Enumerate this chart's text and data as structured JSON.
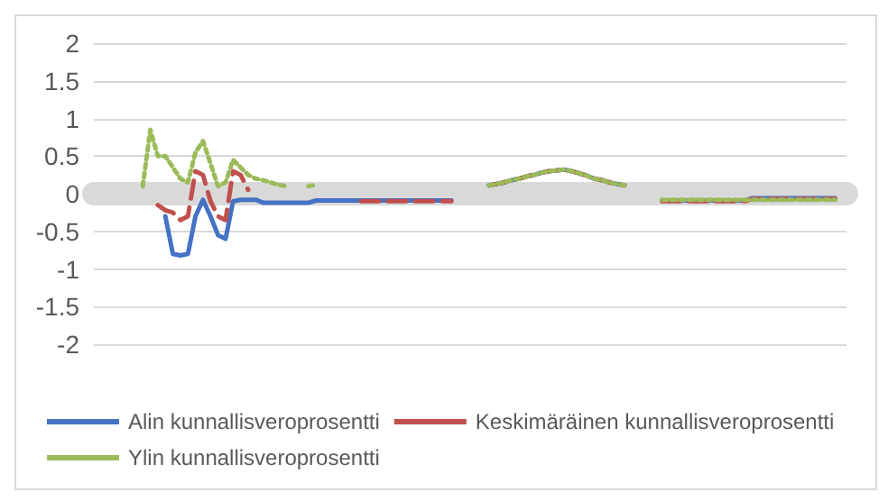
{
  "chart_data": {
    "type": "line",
    "categories": [
      null,
      null,
      null,
      null,
      null,
      null,
      null,
      null,
      null,
      null,
      null,
      null,
      null,
      null,
      null,
      null,
      null,
      null,
      null,
      null,
      null,
      null,
      null,
      null,
      null,
      null,
      null,
      null,
      null,
      null,
      null,
      null,
      null,
      null,
      null,
      null,
      null,
      null,
      null,
      null,
      null,
      null,
      null,
      null,
      null,
      null,
      null,
      null,
      null,
      null,
      null,
      null,
      null,
      null,
      null,
      null,
      null,
      null,
      null,
      null,
      null,
      null,
      null,
      null,
      null,
      null,
      null,
      null,
      null,
      null,
      null,
      null,
      null,
      null,
      null,
      null,
      null,
      null,
      null,
      null,
      null,
      null,
      null,
      null,
      null,
      null,
      null,
      null,
      null,
      null,
      null,
      null,
      null,
      null,
      null,
      null,
      null,
      null,
      null,
      null
    ],
    "ylim": [
      -2,
      2
    ],
    "yticks": [
      -2,
      -1.5,
      -1,
      -0.5,
      0,
      0.5,
      1,
      1.5,
      2
    ],
    "grid": "y",
    "legend": "bottom",
    "marker": "none",
    "series": [
      {
        "name": "Alin kunnallisveroprosentti",
        "color": "#4472c4",
        "line_style": "solid",
        "values": [
          null,
          null,
          null,
          null,
          null,
          null,
          null,
          null,
          null,
          -0.3,
          -0.8,
          -0.82,
          -0.8,
          -0.3,
          -0.08,
          -0.3,
          -0.55,
          -0.6,
          -0.1,
          -0.08,
          -0.08,
          -0.08,
          -0.12,
          -0.12,
          -0.12,
          -0.12,
          -0.12,
          -0.12,
          -0.12,
          -0.09,
          -0.09,
          -0.09,
          -0.09,
          -0.09,
          -0.09,
          -0.09,
          -0.09,
          -0.09,
          -0.09,
          -0.09,
          -0.09,
          -0.09,
          -0.09,
          -0.09,
          -0.09,
          -0.09,
          -0.09,
          -0.09,
          null,
          null,
          null,
          null,
          0.11,
          0.13,
          0.15,
          0.18,
          0.2,
          0.23,
          0.25,
          0.28,
          0.3,
          0.31,
          0.32,
          0.3,
          0.27,
          0.24,
          0.2,
          0.18,
          0.15,
          0.13,
          0.11,
          null,
          null,
          null,
          null,
          -0.09,
          -0.09,
          -0.09,
          -0.09,
          -0.09,
          -0.09,
          -0.09,
          -0.09,
          -0.09,
          -0.09,
          -0.09,
          -0.09,
          -0.06,
          -0.06,
          -0.06,
          -0.06,
          -0.06,
          -0.06,
          -0.06,
          -0.06,
          -0.06,
          -0.06,
          -0.06,
          -0.06,
          null
        ]
      },
      {
        "name": "Keskimäräinen kunnallisveroprosentti",
        "color": "#c0504d",
        "line_style": "dashed",
        "values": [
          null,
          null,
          null,
          null,
          null,
          null,
          null,
          null,
          -0.15,
          -0.22,
          -0.25,
          -0.35,
          -0.3,
          0.3,
          0.25,
          -0.1,
          -0.3,
          -0.35,
          0.3,
          0.25,
          0.05,
          null,
          null,
          null,
          null,
          null,
          null,
          null,
          null,
          null,
          null,
          null,
          null,
          null,
          null,
          -0.1,
          -0.1,
          -0.1,
          -0.1,
          -0.1,
          -0.1,
          -0.1,
          -0.1,
          -0.1,
          -0.1,
          -0.1,
          -0.1,
          -0.1,
          null,
          null,
          null,
          null,
          0.11,
          0.13,
          0.15,
          0.18,
          0.2,
          0.23,
          0.25,
          0.28,
          0.3,
          0.31,
          0.32,
          0.3,
          0.27,
          0.24,
          0.2,
          0.18,
          0.15,
          0.13,
          0.11,
          null,
          null,
          null,
          null,
          -0.1,
          -0.1,
          -0.1,
          -0.1,
          -0.1,
          -0.1,
          -0.1,
          -0.1,
          -0.1,
          -0.1,
          -0.1,
          -0.1,
          -0.07,
          -0.07,
          -0.07,
          -0.07,
          -0.07,
          -0.07,
          -0.07,
          -0.07,
          -0.07,
          -0.07,
          -0.07,
          -0.07,
          null
        ]
      },
      {
        "name": "Ylin kunnallisveroprosentti",
        "color": "#9bbb59",
        "line_style": "dotted",
        "values": [
          null,
          null,
          null,
          null,
          null,
          null,
          0.1,
          0.85,
          0.5,
          0.5,
          0.35,
          0.2,
          0.15,
          0.55,
          0.7,
          0.4,
          0.1,
          0.15,
          0.45,
          0.35,
          0.25,
          0.2,
          0.18,
          0.15,
          0.12,
          0.1,
          null,
          null,
          0.1,
          0.12,
          null,
          null,
          null,
          null,
          null,
          null,
          null,
          null,
          null,
          null,
          null,
          null,
          null,
          null,
          null,
          null,
          null,
          null,
          null,
          null,
          null,
          null,
          0.11,
          0.13,
          0.15,
          0.18,
          0.2,
          0.23,
          0.25,
          0.28,
          0.3,
          0.31,
          0.32,
          0.3,
          0.27,
          0.24,
          0.2,
          0.18,
          0.15,
          0.13,
          0.11,
          null,
          null,
          null,
          null,
          -0.08,
          -0.08,
          -0.08,
          -0.08,
          -0.08,
          -0.08,
          -0.08,
          -0.08,
          -0.08,
          -0.08,
          -0.08,
          -0.08,
          -0.08,
          -0.08,
          -0.08,
          -0.08,
          -0.08,
          -0.08,
          -0.08,
          -0.08,
          -0.08,
          -0.08,
          -0.08,
          -0.08,
          null
        ]
      }
    ]
  }
}
